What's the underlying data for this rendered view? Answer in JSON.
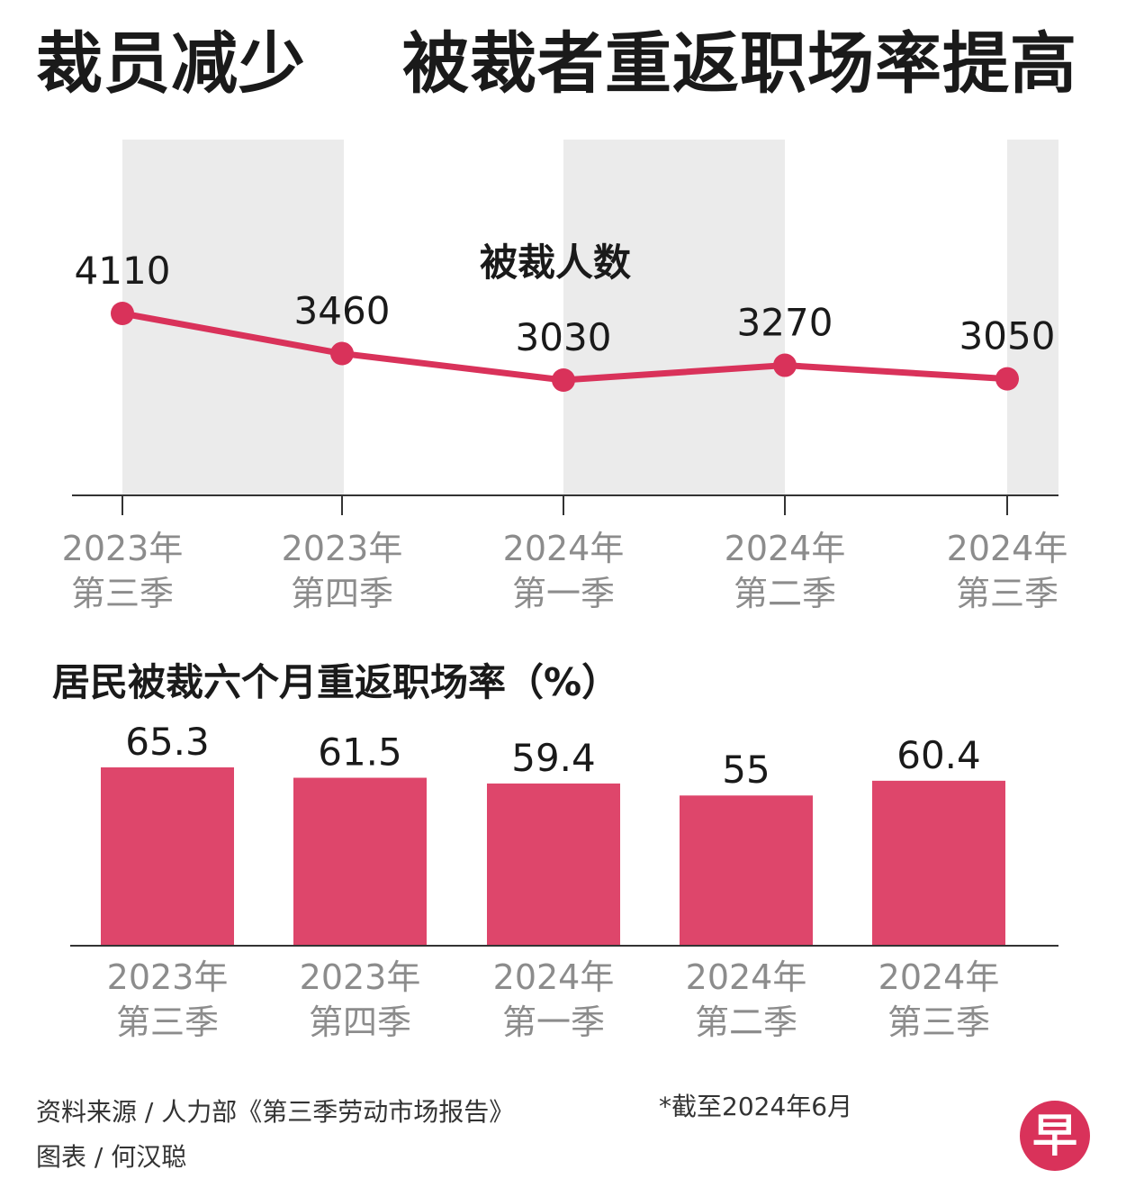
{
  "title": "裁员减少    被裁者重返职场率提高",
  "colors": {
    "accent": "#d9325a",
    "bar": "#de466b",
    "shade": "#ebebeb",
    "axis_text": "#8c8c8c",
    "text": "#1a1a1a"
  },
  "chart_data": [
    {
      "type": "line",
      "title": "被裁人数",
      "categories": [
        "2023年\n第三季",
        "2023年\n第四季",
        "2024年\n第一季",
        "2024年\n第二季",
        "2024年\n第三季"
      ],
      "values": [
        4110,
        3460,
        3030,
        3270,
        3050
      ],
      "data_labels": [
        "4110",
        "3460",
        "3030",
        "3270",
        "3050"
      ],
      "alternating_shading": true
    },
    {
      "type": "bar",
      "title": "居民被裁六个月重返职场率（%）",
      "categories": [
        "2023年\n第三季",
        "2023年\n第四季",
        "2024年\n第一季",
        "2024年\n第二季",
        "2024年\n第三季"
      ],
      "values": [
        65.3,
        61.5,
        59.4,
        55,
        60.4
      ],
      "data_labels": [
        "65.3",
        "61.5",
        "59.4",
        "55",
        "60.4"
      ]
    }
  ],
  "footer": {
    "source": "资料来源 / 人力部《第三季劳动市场报告》",
    "note": "*截至2024年6月",
    "credit": "图表 / 何汉聪",
    "logo_text": "早"
  }
}
